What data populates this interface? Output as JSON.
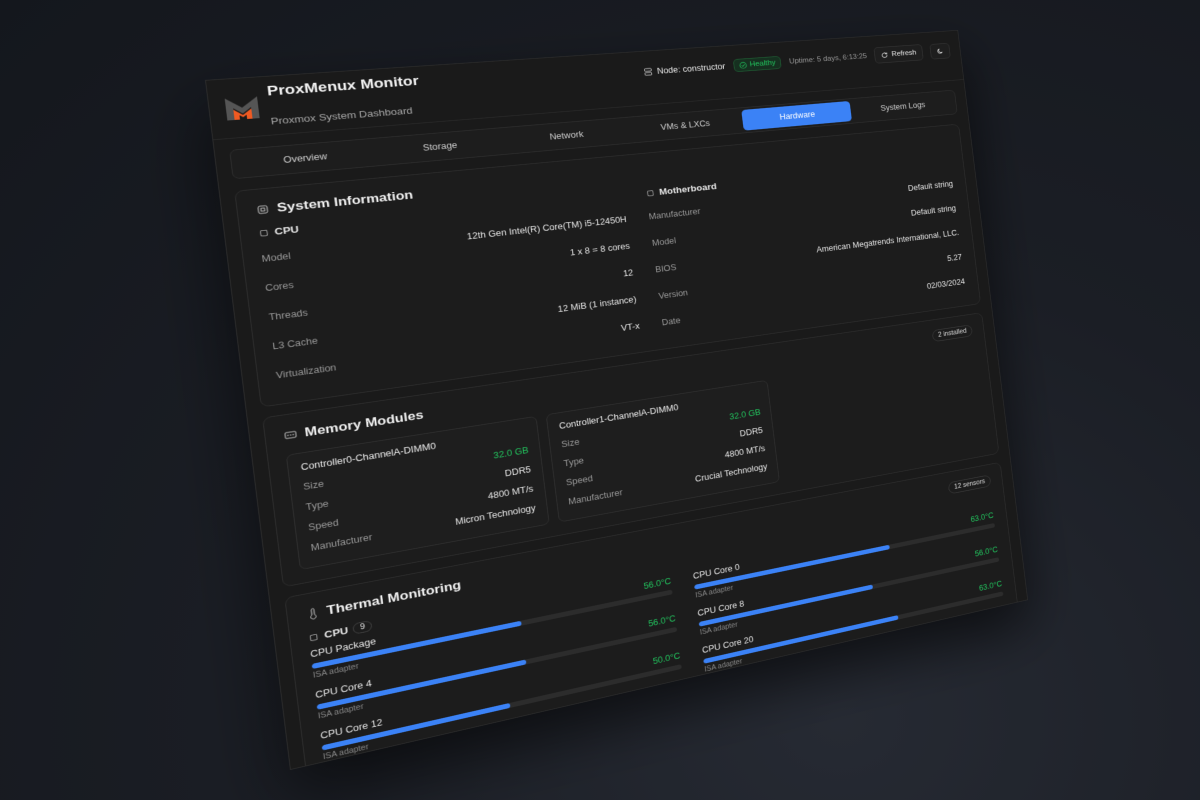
{
  "header": {
    "title": "ProxMenux Monitor",
    "subtitle": "Proxmox System Dashboard",
    "node": "Node: constructor",
    "status": "Healthy",
    "uptime": "Uptime: 5 days, 6:13:25",
    "refresh_label": "Refresh",
    "theme_icon": "moon-icon"
  },
  "tabs": [
    {
      "label": "Overview"
    },
    {
      "label": "Storage"
    },
    {
      "label": "Network"
    },
    {
      "label": "VMs & LXCs"
    },
    {
      "label": "Hardware",
      "active": true
    },
    {
      "label": "System Logs"
    }
  ],
  "system_info": {
    "title": "System Information",
    "cpu": {
      "title": "CPU",
      "rows": [
        {
          "label": "Model",
          "value": "12th Gen Intel(R) Core(TM) i5-12450H"
        },
        {
          "label": "Cores",
          "value": "1 x 8 = 8 cores"
        },
        {
          "label": "Threads",
          "value": "12"
        },
        {
          "label": "L3 Cache",
          "value": "12 MiB (1 instance)"
        },
        {
          "label": "Virtualization",
          "value": "VT-x"
        }
      ]
    },
    "motherboard": {
      "title": "Motherboard",
      "rows": [
        {
          "label": "Manufacturer",
          "value": "Default string"
        },
        {
          "label": "Model",
          "value": "Default string"
        },
        {
          "label": "BIOS",
          "value": "American Megatrends International, LLC."
        },
        {
          "label": "Version",
          "value": "5.27"
        },
        {
          "label": "Date",
          "value": "02/03/2024"
        }
      ]
    }
  },
  "memory": {
    "title": "Memory Modules",
    "badge": "2 installed",
    "modules": [
      {
        "name": "Controller0-ChannelA-DIMM0",
        "rows": [
          {
            "label": "Size",
            "value": "32.0 GB"
          },
          {
            "label": "Type",
            "value": "DDR5"
          },
          {
            "label": "Speed",
            "value": "4800 MT/s"
          },
          {
            "label": "Manufacturer",
            "value": "Micron Technology"
          }
        ]
      },
      {
        "name": "Controller1-ChannelA-DIMM0",
        "rows": [
          {
            "label": "Size",
            "value": "32.0 GB"
          },
          {
            "label": "Type",
            "value": "DDR5"
          },
          {
            "label": "Speed",
            "value": "4800 MT/s"
          },
          {
            "label": "Manufacturer",
            "value": "Crucial Technology"
          }
        ]
      }
    ]
  },
  "thermal": {
    "title": "Thermal Monitoring",
    "badge": "12 sensors",
    "group": "CPU",
    "group_count": "9",
    "sensors": [
      {
        "name": "CPU Package",
        "temp": "56.0°C",
        "level": 56,
        "adapter": "ISA adapter"
      },
      {
        "name": "CPU Core 0",
        "temp": "63.0°C",
        "level": 63,
        "adapter": "ISA adapter"
      },
      {
        "name": "CPU Core 4",
        "temp": "56.0°C",
        "level": 56,
        "adapter": "ISA adapter"
      },
      {
        "name": "CPU Core 8",
        "temp": "56.0°C",
        "level": 56,
        "adapter": "ISA adapter"
      },
      {
        "name": "CPU Core 12",
        "temp": "50.0°C",
        "level": 50,
        "adapter": "ISA adapter"
      },
      {
        "name": "CPU Core 20",
        "temp": "63.0°C",
        "level": 63,
        "adapter": "ISA adapter"
      }
    ]
  },
  "colors": {
    "accent": "#3b82f6",
    "healthy": "#22c55e",
    "logo_orange": "#f05a22"
  }
}
